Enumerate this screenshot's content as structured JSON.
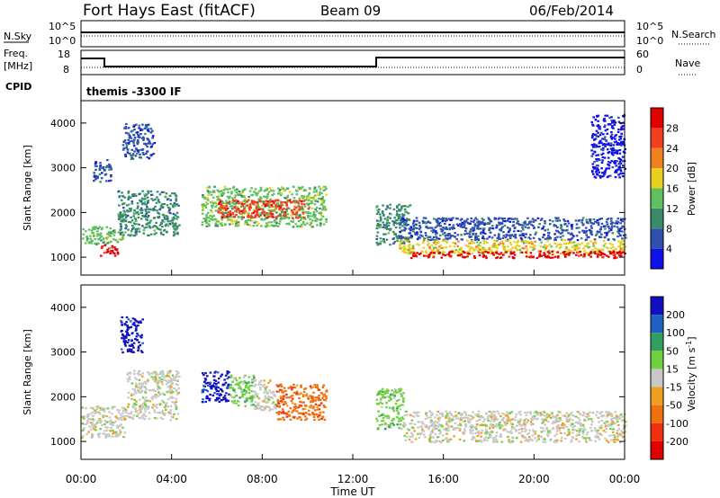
{
  "header": {
    "station": "Fort Hays East (fitACF)",
    "beam": "Beam 09",
    "date": "06/Feb/2014"
  },
  "noise_panel": {
    "left_label": "N.Sky",
    "right_label": "N.Search",
    "top_tick": "10^5",
    "bottom_tick": "10^0"
  },
  "freq_panel": {
    "left_label_1": "Freq.",
    "left_label_2": "[MHz]",
    "left_tick_top": "18",
    "left_tick_bottom": "8",
    "right_label": "Nave",
    "right_tick_top": "60",
    "right_tick_bottom": "0"
  },
  "cpid": {
    "label": "CPID",
    "value": "themis -3300 IF"
  },
  "chart_data": [
    {
      "type": "heatmap",
      "name": "power",
      "ylabel": "Slant Range [km]",
      "yticks": [
        "1000",
        "2000",
        "3000",
        "4000"
      ],
      "ylim": [
        600,
        4500
      ],
      "colorbar_label": "Power [dB]",
      "colorbar_ticks": [
        "4",
        "8",
        "12",
        "16",
        "20",
        "24",
        "28"
      ],
      "colors": [
        "#1010e8",
        "#3050b0",
        "#3a8a6a",
        "#60c060",
        "#e8d020",
        "#f08020",
        "#f04020",
        "#e00000"
      ],
      "regions": [
        {
          "t0": 0.0,
          "t1": 1.8,
          "r0": 1300,
          "r1": 1700,
          "level": 3
        },
        {
          "t0": 0.8,
          "t1": 1.6,
          "r0": 1050,
          "r1": 1300,
          "level": 7
        },
        {
          "t0": 1.6,
          "t1": 4.3,
          "r0": 1500,
          "r1": 2500,
          "level": 2
        },
        {
          "t0": 0.5,
          "t1": 1.3,
          "r0": 2700,
          "r1": 3200,
          "level": 1
        },
        {
          "t0": 1.8,
          "t1": 3.2,
          "r0": 3200,
          "r1": 4000,
          "level": 1
        },
        {
          "t0": 5.3,
          "t1": 10.8,
          "r0": 1700,
          "r1": 2600,
          "level": 3
        },
        {
          "t0": 6.0,
          "t1": 10.0,
          "r0": 1900,
          "r1": 2300,
          "level": 6
        },
        {
          "t0": 13.0,
          "t1": 14.5,
          "r0": 1300,
          "r1": 2200,
          "level": 2
        },
        {
          "t0": 14.0,
          "t1": 24.0,
          "r0": 1400,
          "r1": 1900,
          "level": 1
        },
        {
          "t0": 14.0,
          "t1": 24.0,
          "r0": 1100,
          "r1": 1400,
          "level": 4
        },
        {
          "t0": 14.5,
          "t1": 24.0,
          "r0": 1000,
          "r1": 1150,
          "level": 7
        },
        {
          "t0": 22.5,
          "t1": 24.0,
          "r0": 2800,
          "r1": 4200,
          "level": 0
        }
      ]
    },
    {
      "type": "heatmap",
      "name": "velocity",
      "ylabel": "Slant Range [km]",
      "yticks": [
        "1000",
        "2000",
        "3000",
        "4000"
      ],
      "ylim": [
        600,
        4500
      ],
      "colorbar_label": "Velocity [m s^-1]",
      "colorbar_ticks": [
        "200",
        "100",
        "50",
        "15",
        "-15",
        "-50",
        "-100",
        "-200"
      ],
      "colors": [
        "#1010c0",
        "#2060c0",
        "#30a060",
        "#70d040",
        "#c8c8c8",
        "#f0a020",
        "#f07010",
        "#f03010",
        "#e00000"
      ],
      "regions": [
        {
          "t0": 0.0,
          "t1": 2.0,
          "r0": 1100,
          "r1": 1800,
          "level": 4
        },
        {
          "t0": 2.0,
          "t1": 4.3,
          "r0": 1500,
          "r1": 2600,
          "level": 4
        },
        {
          "t0": 1.7,
          "t1": 2.7,
          "r0": 3000,
          "r1": 3800,
          "level": 0
        },
        {
          "t0": 5.3,
          "t1": 6.5,
          "r0": 1900,
          "r1": 2600,
          "level": 0
        },
        {
          "t0": 6.5,
          "t1": 7.6,
          "r0": 1800,
          "r1": 2500,
          "level": 3
        },
        {
          "t0": 7.6,
          "t1": 8.6,
          "r0": 1700,
          "r1": 2400,
          "level": 4
        },
        {
          "t0": 8.6,
          "t1": 10.8,
          "r0": 1500,
          "r1": 2300,
          "level": 6
        },
        {
          "t0": 13.0,
          "t1": 14.2,
          "r0": 1300,
          "r1": 2200,
          "level": 3
        },
        {
          "t0": 14.2,
          "t1": 24.0,
          "r0": 1000,
          "r1": 1700,
          "level": 4
        }
      ]
    }
  ],
  "time_axis": {
    "label": "Time UT",
    "ticks": [
      "00:00",
      "04:00",
      "08:00",
      "12:00",
      "16:00",
      "20:00",
      "00:00"
    ]
  }
}
